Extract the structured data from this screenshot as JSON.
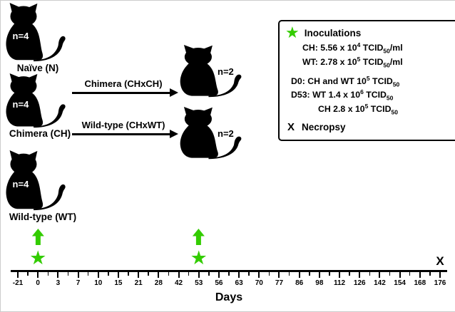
{
  "colors": {
    "green": "#33cc00",
    "black": "#000000"
  },
  "groups": [
    {
      "label": "Naïve (N)",
      "count": "n=4"
    },
    {
      "label": "Chimera (CH)",
      "count": "n=4"
    },
    {
      "label": "Wild-type (WT)",
      "count": "n=4"
    }
  ],
  "crosses": [
    {
      "label": "Chimera (CHxCH)",
      "count": "n=2"
    },
    {
      "label": "Wild-type (CHxWT)",
      "count": "n=2"
    }
  ],
  "legend": {
    "inoculations_title": "Inoculations",
    "lines": [
      {
        "pre": "CH: 5.56 x 10",
        "sup": "4",
        "mid": " TCID",
        "sub": "50",
        "post": "/ml"
      },
      {
        "pre": "WT: 2.78 x 10",
        "sup": "5",
        "mid": " TCID",
        "sub": "50",
        "post": "/ml"
      },
      {
        "pre": "D0: CH and WT 10",
        "sup": "5",
        "mid": " TCID",
        "sub": "50",
        "post": ""
      },
      {
        "pre": "D53: WT 1.4 x 10",
        "sup": "6",
        "mid": " TCID",
        "sub": "50",
        "post": ""
      },
      {
        "pre": "CH 2.8 x 10",
        "sup": "5",
        "mid": " TCID",
        "sub": "50",
        "post": ""
      }
    ],
    "necropsy_symbol": "X",
    "necropsy_label": "Necropsy"
  },
  "timeline": {
    "days": [
      "-21",
      "0",
      "3",
      "7",
      "10",
      "15",
      "21",
      "28",
      "42",
      "53",
      "56",
      "63",
      "70",
      "77",
      "86",
      "98",
      "112",
      "126",
      "142",
      "154",
      "168",
      "176"
    ],
    "axis_label": "Days",
    "inoculation_days": [
      "0",
      "53"
    ],
    "necropsy_day": "176",
    "necropsy_symbol": "X"
  }
}
